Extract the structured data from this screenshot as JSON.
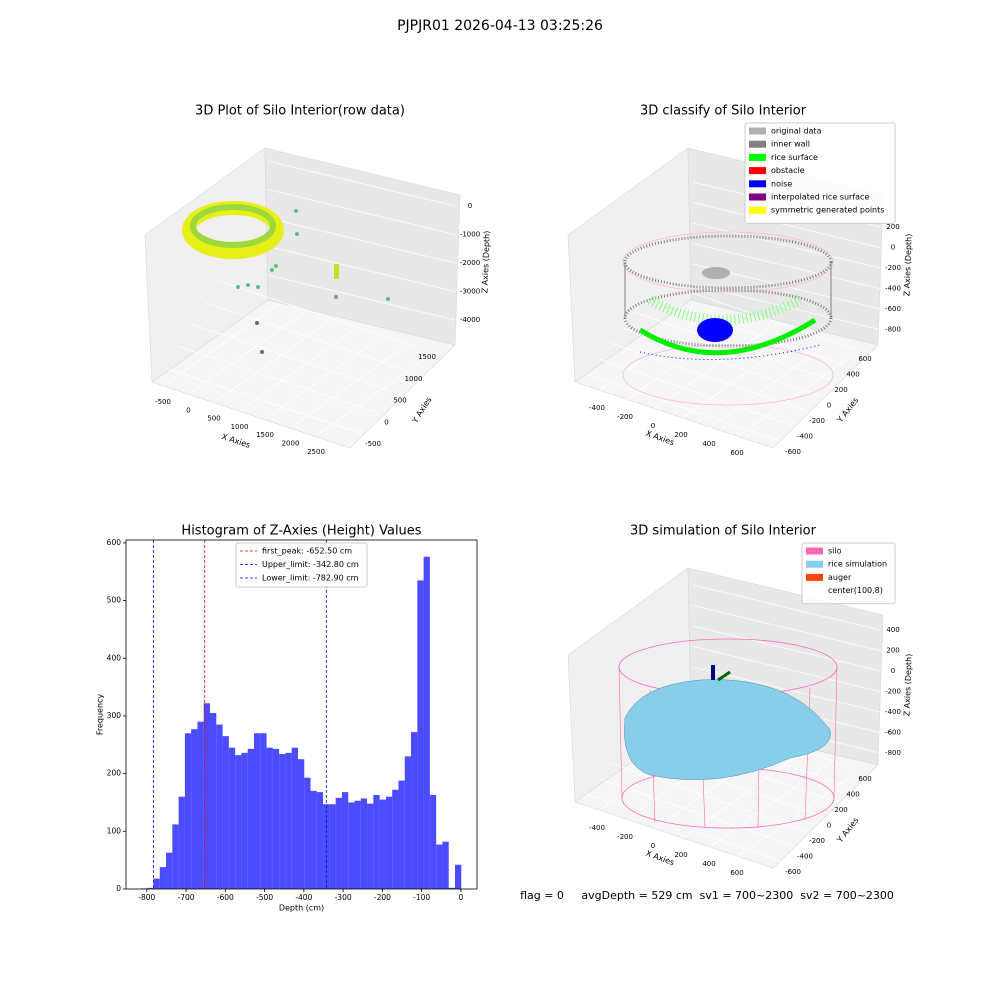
{
  "title": "PJPJR01 2026-04-13 03:25:26",
  "chart_data": [
    {
      "type": "scatter3d",
      "title": "3D Plot of Silo Interior(row data)",
      "xlabel": "X Axies",
      "ylabel": "Y Axies",
      "zlabel": "Z Axies (Depth)",
      "xticks": [
        -500,
        0,
        500,
        1000,
        1500,
        2000,
        2500
      ],
      "yticks": [
        -500,
        0,
        500,
        1000,
        1500
      ],
      "zticks": [
        0,
        -1000,
        -2000,
        -3000,
        -4000
      ]
    },
    {
      "type": "scatter3d",
      "title": "3D classify of Silo Interior",
      "xlabel": "X Axies",
      "ylabel": "Y Axies",
      "zlabel": "Z Axies (Depth)",
      "xticks": [
        -400,
        -200,
        0,
        200,
        400,
        600
      ],
      "yticks": [
        -600,
        -400,
        -200,
        0,
        200,
        400,
        600
      ],
      "zticks": [
        200,
        0,
        -200,
        -400,
        -600,
        -800
      ],
      "legend": [
        {
          "name": "original data",
          "color": "#b0b0b0"
        },
        {
          "name": "inner wall",
          "color": "#808080"
        },
        {
          "name": "rice surface",
          "color": "#00ff00"
        },
        {
          "name": "obstacle",
          "color": "#ff0000"
        },
        {
          "name": "noise",
          "color": "#0000ff"
        },
        {
          "name": "interpolated rice surface",
          "color": "#800080"
        },
        {
          "name": "symmetric generated points",
          "color": "#ffff00"
        }
      ]
    },
    {
      "type": "histogram",
      "title": "Histogram of Z-Axies (Height) Values",
      "xlabel": "Depth (cm)",
      "ylabel": "Frequency",
      "color": "#0000ff",
      "alpha": 0.7,
      "bins": [
        -815,
        -799,
        -783,
        -767,
        -751,
        -735,
        -719,
        -703,
        -687,
        -671,
        -655,
        -639,
        -623,
        -607,
        -591,
        -575,
        -559,
        -543,
        -527,
        -511,
        -495,
        -479,
        -463,
        -447,
        -431,
        -415,
        -399,
        -383,
        -367,
        -351,
        -335,
        -319,
        -303,
        -287,
        -271,
        -255,
        -239,
        -223,
        -207,
        -191,
        -175,
        -159,
        -143,
        -127,
        -111,
        -95,
        -79,
        -63,
        -47,
        -31,
        -15,
        1
      ],
      "counts": [
        1,
        2,
        18,
        38,
        63,
        112,
        160,
        270,
        277,
        290,
        322,
        305,
        285,
        265,
        245,
        232,
        236,
        243,
        270,
        270,
        245,
        243,
        234,
        236,
        245,
        225,
        193,
        170,
        168,
        147,
        147,
        158,
        168,
        150,
        153,
        157,
        148,
        163,
        155,
        160,
        172,
        188,
        230,
        272,
        535,
        576,
        163,
        77,
        82,
        2,
        42
      ],
      "xlim": [
        -853,
        41
      ],
      "ylim": [
        0,
        605
      ],
      "xticks": [
        -800,
        -700,
        -600,
        -500,
        -400,
        -300,
        -200,
        -100,
        0
      ],
      "yticks": [
        0,
        100,
        200,
        300,
        400,
        500,
        600
      ],
      "vlines": [
        {
          "label": "first_peak: -652.50 cm",
          "value": -652.5,
          "color": "#ff0000"
        },
        {
          "label": "Upper_limit: -342.80 cm",
          "value": -342.8,
          "color": "#0000ff"
        },
        {
          "label": "Lower_limit: -782.90 cm",
          "value": -782.9,
          "color": "#0000ff"
        }
      ]
    },
    {
      "type": "surface3d",
      "title": "3D simulation of Silo Interior",
      "xlabel": "X Axies",
      "ylabel": "Y Axies",
      "zlabel": "Z Axies (Depth)",
      "xticks": [
        -400,
        -200,
        0,
        200,
        400,
        600
      ],
      "yticks": [
        -600,
        -400,
        -200,
        0,
        200,
        400,
        600
      ],
      "zticks": [
        400,
        200,
        0,
        -200,
        -400,
        -600,
        -800
      ],
      "legend": [
        {
          "name": "silo",
          "color": "#ff69b4"
        },
        {
          "name": "rice simulation",
          "color": "#87ceeb"
        },
        {
          "name": "auger",
          "color": "#ff4500"
        },
        {
          "name": "center(100,8)",
          "color": "#ffffff"
        }
      ]
    }
  ],
  "status": "flag = 0     avgDepth = 529 cm  sv1 = 700~2300  sv2 = 700~2300"
}
